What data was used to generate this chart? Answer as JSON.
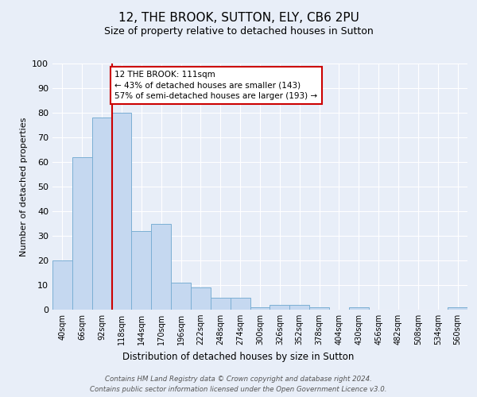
{
  "title1": "12, THE BROOK, SUTTON, ELY, CB6 2PU",
  "title2": "Size of property relative to detached houses in Sutton",
  "xlabel": "Distribution of detached houses by size in Sutton",
  "ylabel": "Number of detached properties",
  "bar_labels": [
    "40sqm",
    "66sqm",
    "92sqm",
    "118sqm",
    "144sqm",
    "170sqm",
    "196sqm",
    "222sqm",
    "248sqm",
    "274sqm",
    "300sqm",
    "326sqm",
    "352sqm",
    "378sqm",
    "404sqm",
    "430sqm",
    "456sqm",
    "482sqm",
    "508sqm",
    "534sqm",
    "560sqm"
  ],
  "bar_values": [
    20,
    62,
    78,
    80,
    32,
    35,
    11,
    9,
    5,
    5,
    1,
    2,
    2,
    1,
    0,
    1,
    0,
    0,
    0,
    0,
    1
  ],
  "bar_color": "#c5d8f0",
  "bar_edge_color": "#7bafd4",
  "vline_x_idx": 3,
  "vline_color": "#cc0000",
  "annotation_text": "12 THE BROOK: 111sqm\n← 43% of detached houses are smaller (143)\n57% of semi-detached houses are larger (193) →",
  "annotation_box_color": "#ffffff",
  "annotation_box_edge": "#cc0000",
  "bg_color": "#e8eef8",
  "plot_bg_color": "#e8eef8",
  "footer1": "Contains HM Land Registry data © Crown copyright and database right 2024.",
  "footer2": "Contains public sector information licensed under the Open Government Licence v3.0.",
  "ylim": [
    0,
    100
  ],
  "yticks": [
    0,
    10,
    20,
    30,
    40,
    50,
    60,
    70,
    80,
    90,
    100
  ],
  "grid_color": "#ffffff",
  "title1_fontsize": 11,
  "title2_fontsize": 9
}
